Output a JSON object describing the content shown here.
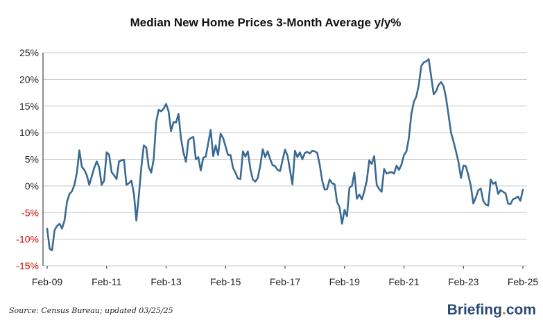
{
  "chart_data": {
    "type": "line",
    "title": "Median New Home Prices 3-Month Average y/y%",
    "xlabel": "",
    "ylabel": "",
    "ylim": [
      -15,
      25
    ],
    "y_ticks": [
      "25%",
      "20%",
      "15%",
      "10%",
      "5%",
      "0%",
      "-5%",
      "-10%",
      "-15%"
    ],
    "x_ticks": [
      "Feb-09",
      "Feb-11",
      "Feb-13",
      "Feb-15",
      "Feb-17",
      "Feb-19",
      "Feb-21",
      "Feb-23",
      "Feb-25"
    ],
    "grid": true,
    "line_color": "#3a6a94",
    "negative_tick_color": "#cc0000",
    "series": [
      {
        "x": [
          "2009-02",
          "2009-03",
          "2009-04",
          "2009-05",
          "2009-06",
          "2009-07",
          "2009-08",
          "2009-09",
          "2009-10",
          "2009-11",
          "2009-12",
          "2010-01",
          "2010-02",
          "2010-03",
          "2010-04",
          "2010-05",
          "2010-06",
          "2010-07",
          "2010-08",
          "2010-09",
          "2010-10",
          "2010-11",
          "2010-12",
          "2011-01",
          "2011-02",
          "2011-03",
          "2011-04",
          "2011-05",
          "2011-06",
          "2011-07",
          "2011-08",
          "2011-09",
          "2011-10",
          "2011-11",
          "2011-12",
          "2012-01",
          "2012-02",
          "2012-03",
          "2012-04",
          "2012-05",
          "2012-06",
          "2012-07",
          "2012-08",
          "2012-09",
          "2012-10",
          "2012-11",
          "2012-12",
          "2013-01",
          "2013-02",
          "2013-03",
          "2013-04",
          "2013-05",
          "2013-06",
          "2013-07",
          "2013-08",
          "2013-09",
          "2013-10",
          "2013-11",
          "2013-12",
          "2014-01",
          "2014-02",
          "2014-03",
          "2014-04",
          "2014-05",
          "2014-06",
          "2014-07",
          "2014-08",
          "2014-09",
          "2014-10",
          "2014-11",
          "2014-12",
          "2015-01",
          "2015-02",
          "2015-03",
          "2015-04",
          "2015-05",
          "2015-06",
          "2015-07",
          "2015-08",
          "2015-09",
          "2015-10",
          "2015-11",
          "2015-12",
          "2016-01",
          "2016-02",
          "2016-03",
          "2016-04",
          "2016-05",
          "2016-06",
          "2016-07",
          "2016-08",
          "2016-09",
          "2016-10",
          "2016-11",
          "2016-12",
          "2017-01",
          "2017-02",
          "2017-03",
          "2017-04",
          "2017-05",
          "2017-06",
          "2017-07",
          "2017-08",
          "2017-09",
          "2017-10",
          "2017-11",
          "2017-12",
          "2018-01",
          "2018-02",
          "2018-03",
          "2018-04",
          "2018-05",
          "2018-06",
          "2018-07",
          "2018-08",
          "2018-09",
          "2018-10",
          "2018-11",
          "2018-12",
          "2019-01",
          "2019-02",
          "2019-03",
          "2019-04",
          "2019-05",
          "2019-06",
          "2019-07",
          "2019-08",
          "2019-09",
          "2019-10",
          "2019-11",
          "2019-12",
          "2020-01",
          "2020-02",
          "2020-03",
          "2020-04",
          "2020-05",
          "2020-06",
          "2020-07",
          "2020-08",
          "2020-09",
          "2020-10",
          "2020-11",
          "2020-12",
          "2021-01",
          "2021-02",
          "2021-03",
          "2021-04",
          "2021-05",
          "2021-06",
          "2021-07",
          "2021-08",
          "2021-09",
          "2021-10",
          "2021-11",
          "2021-12",
          "2022-01",
          "2022-02",
          "2022-03",
          "2022-04",
          "2022-05",
          "2022-06",
          "2022-07",
          "2022-08",
          "2022-09",
          "2022-10",
          "2022-11",
          "2022-12",
          "2023-01",
          "2023-02",
          "2023-03",
          "2023-04",
          "2023-05",
          "2023-06",
          "2023-07",
          "2023-08",
          "2023-09",
          "2023-10",
          "2023-11",
          "2023-12",
          "2024-01",
          "2024-02",
          "2024-03",
          "2024-04",
          "2024-05",
          "2024-06",
          "2024-07",
          "2024-08",
          "2024-09",
          "2024-10",
          "2024-11",
          "2024-12",
          "2025-01",
          "2025-02"
        ],
        "values": [
          -8.0,
          -11.8,
          -12.1,
          -8.3,
          -7.5,
          -7.1,
          -8.0,
          -6.5,
          -3.0,
          -1.5,
          -1.0,
          0.2,
          2.5,
          6.7,
          3.6,
          3.0,
          2.0,
          0.2,
          1.8,
          3.4,
          4.6,
          3.5,
          0.2,
          1.0,
          6.3,
          5.9,
          2.6,
          2.0,
          1.3,
          4.6,
          4.8,
          4.9,
          0.2,
          0.5,
          1.0,
          -1.5,
          -6.5,
          -1.8,
          3.5,
          7.6,
          7.2,
          3.5,
          2.5,
          5.0,
          12.0,
          14.3,
          14.0,
          14.5,
          15.4,
          14.0,
          10.3,
          12.0,
          11.9,
          13.5,
          9.0,
          6.3,
          4.5,
          8.6,
          9.0,
          9.2,
          5.0,
          5.4,
          2.9,
          5.3,
          5.5,
          8.0,
          10.5,
          5.6,
          7.6,
          5.8,
          9.8,
          9.0,
          7.4,
          5.8,
          5.8,
          3.4,
          2.5,
          1.4,
          1.3,
          6.5,
          5.5,
          6.5,
          3.2,
          1.2,
          0.8,
          1.5,
          3.8,
          6.9,
          5.4,
          6.5,
          5.0,
          3.9,
          3.7,
          3.0,
          2.8,
          4.8,
          6.8,
          5.7,
          3.0,
          0.3,
          6.6,
          5.4,
          6.3,
          5.0,
          6.2,
          6.4,
          6.1,
          6.6,
          6.5,
          6.2,
          4.0,
          1.0,
          -0.7,
          -0.6,
          1.2,
          0.5,
          0.3,
          -3.0,
          -4.0,
          -7.1,
          -4.5,
          -5.7,
          -0.3,
          0.0,
          2.5,
          -2.4,
          -1.6,
          -2.5,
          -1.0,
          1.0,
          4.8,
          4.1,
          5.6,
          0.2,
          -0.6,
          -1.1,
          3.2,
          2.3,
          2.5,
          2.6,
          2.3,
          3.8,
          3.0,
          4.0,
          5.8,
          6.5,
          9.0,
          13.5,
          15.8,
          16.8,
          19.0,
          22.5,
          23.2,
          23.4,
          23.8,
          20.5,
          17.2,
          17.8,
          19.0,
          19.5,
          18.7,
          16.5,
          13.3,
          10.0,
          8.3,
          6.5,
          4.5,
          1.5,
          3.8,
          3.7,
          2.0,
          0.0,
          -3.3,
          -2.2,
          -0.8,
          -0.5,
          -2.8,
          -3.5,
          -3.7,
          1.2,
          0.4,
          0.7,
          -1.5,
          -0.8,
          -1.1,
          -1.4,
          -3.3,
          -3.4,
          -2.5,
          -2.3,
          -2.0,
          -2.8,
          -0.7
        ]
      }
    ]
  },
  "footer": {
    "source": "Source:  Census Bureau;  updated  03/25/25",
    "brand_name": "Briefing",
    "brand_dot": ".",
    "brand_suffix": "com"
  }
}
